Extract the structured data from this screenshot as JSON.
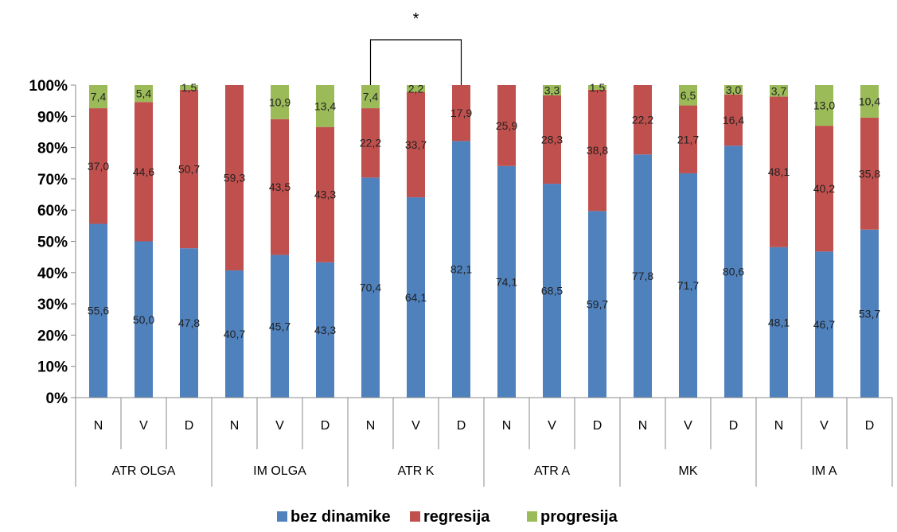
{
  "chart_data": {
    "type": "bar",
    "stacked": true,
    "percent_stacked": true,
    "groups": [
      "ATR OLGA",
      "IM OLGA",
      "ATR K",
      "ATR A",
      "MK",
      "IM A"
    ],
    "categories": [
      "N",
      "V",
      "D",
      "N",
      "V",
      "D",
      "N",
      "V",
      "D",
      "N",
      "V",
      "D",
      "N",
      "V",
      "D",
      "N",
      "V",
      "D"
    ],
    "yticks": [
      "0%",
      "10%",
      "20%",
      "30%",
      "40%",
      "50%",
      "60%",
      "70%",
      "80%",
      "90%",
      "100%"
    ],
    "ylim": [
      0,
      100
    ],
    "series": [
      {
        "name": "bez dinamike",
        "color": "#4f81bd",
        "values": [
          55.6,
          50.0,
          47.8,
          40.7,
          45.7,
          43.3,
          70.4,
          64.1,
          82.1,
          74.1,
          68.5,
          59.7,
          77.8,
          71.7,
          80.6,
          48.1,
          46.7,
          53.7
        ],
        "labels": [
          "55,6",
          "50,0",
          "47,8",
          "40,7",
          "45,7",
          "43,3",
          "70,4",
          "64,1",
          "82,1",
          "74,1",
          "68,5",
          "59,7",
          "77,8",
          "71,7",
          "80,6",
          "48,1",
          "46,7",
          "53,7"
        ]
      },
      {
        "name": "regresija",
        "color": "#c0504d",
        "values": [
          37.0,
          44.6,
          50.7,
          59.3,
          43.5,
          43.3,
          22.2,
          33.7,
          17.9,
          25.9,
          28.3,
          38.8,
          22.2,
          21.7,
          16.4,
          48.1,
          40.2,
          35.8
        ],
        "labels": [
          "37,0",
          "44,6",
          "50,7",
          "59,3",
          "43,5",
          "43,3",
          "22,2",
          "33,7",
          "17,9",
          "25,9",
          "28,3",
          "38,8",
          "22,2",
          "21,7",
          "16,4",
          "48,1",
          "40,2",
          "35,8"
        ]
      },
      {
        "name": "progresija",
        "color": "#9bbb59",
        "values": [
          7.4,
          5.4,
          1.5,
          0,
          10.9,
          13.4,
          7.4,
          2.2,
          0,
          0,
          3.3,
          1.5,
          0,
          6.5,
          3.0,
          3.7,
          13.0,
          10.4
        ],
        "labels": [
          "7,4",
          "5,4",
          "1,5",
          "",
          "10,9",
          "13,4",
          "7,4",
          "2,2",
          "",
          "",
          "3,3",
          "1,5",
          "",
          "6,5",
          "3,0",
          "3,7",
          "13,0",
          "10,4"
        ]
      }
    ],
    "annotation": {
      "text": "*",
      "from_bar": 6,
      "to_bar": 8
    },
    "legend_position": "bottom",
    "grid": false
  }
}
